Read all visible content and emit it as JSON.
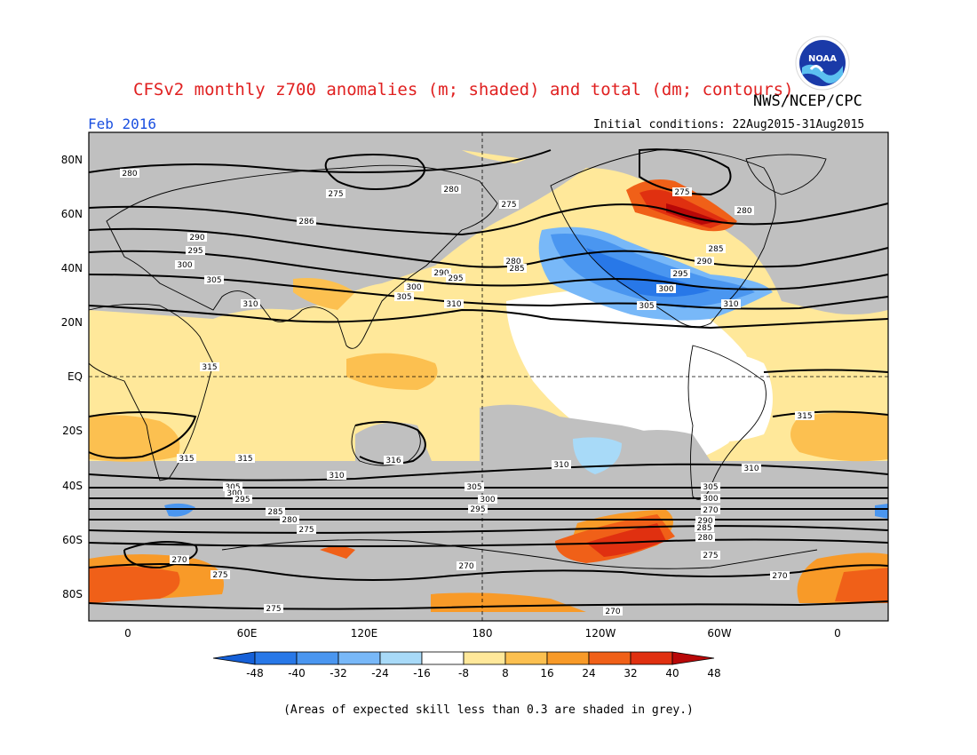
{
  "header": {
    "title": "CFSv2 monthly z700 anomalies (m; shaded) and total (dm; contours)",
    "agency": "NWS/NCEP/CPC",
    "logo_text": "NOAA",
    "month": "Feb 2016",
    "initial_conditions": "Initial conditions: 22Aug2015-31Aug2015"
  },
  "map": {
    "lat_labels": [
      "80N",
      "60N",
      "40N",
      "20N",
      "EQ",
      "20S",
      "40S",
      "60S",
      "80S"
    ],
    "lon_labels": [
      "0",
      "60E",
      "120E",
      "180",
      "120W",
      "60W",
      "0"
    ],
    "contour_labels": [
      "280",
      "275",
      "280",
      "275",
      "275",
      "280",
      "286",
      "290",
      "295",
      "300",
      "305",
      "310",
      "290",
      "295",
      "300",
      "305",
      "310",
      "280",
      "285",
      "290",
      "295",
      "300",
      "305",
      "310",
      "285",
      "315",
      "315",
      "315",
      "316",
      "310",
      "310",
      "315",
      "310",
      "305",
      "300",
      "295",
      "305",
      "300",
      "295",
      "285",
      "280",
      "275",
      "290",
      "285",
      "280",
      "275",
      "305",
      "300",
      "270",
      "275",
      "275",
      "270",
      "270",
      "270",
      "270"
    ],
    "skill_color": "#c0c0c0",
    "ocean_color": "#ffffff"
  },
  "colorbar": {
    "ticks": [
      "-48",
      "-40",
      "-32",
      "-24",
      "-16",
      "-8",
      "8",
      "16",
      "24",
      "32",
      "40",
      "48"
    ],
    "colors": [
      "#1560d8",
      "#2878e8",
      "#4a96f0",
      "#78b8f8",
      "#a8daf8",
      "#ffffff",
      "#ffe89a",
      "#fcc050",
      "#f89a28",
      "#f06018",
      "#e03010",
      "#b80808"
    ]
  },
  "footer": {
    "note": "(Areas of expected skill less than 0.3 are shaded in grey.)"
  }
}
